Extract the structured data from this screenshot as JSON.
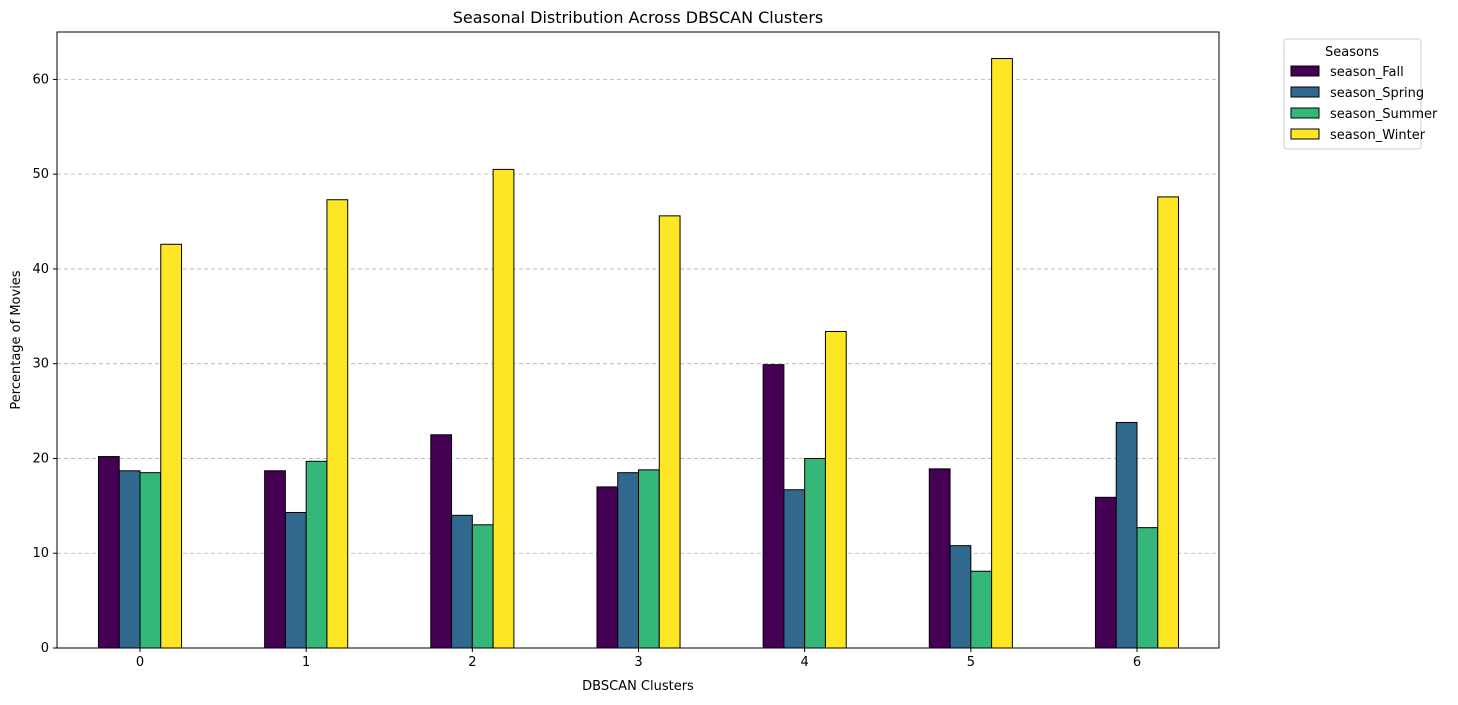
{
  "chart_data": {
    "type": "bar",
    "title": "Seasonal Distribution Across DBSCAN Clusters",
    "xlabel": "DBSCAN Clusters",
    "ylabel": "Percentage of Movies",
    "categories": [
      "0",
      "1",
      "2",
      "3",
      "4",
      "5",
      "6"
    ],
    "ylim": [
      0,
      65
    ],
    "yticks": [
      0,
      10,
      20,
      30,
      40,
      50,
      60
    ],
    "grid": "y-axis, dashed",
    "legend": {
      "title": "Seasons",
      "placement": "outside top-right"
    },
    "series": [
      {
        "name": "season_Fall",
        "color": "#440154",
        "values": [
          20.2,
          18.7,
          22.5,
          17.0,
          29.9,
          18.9,
          15.9
        ]
      },
      {
        "name": "season_Spring",
        "color": "#31688e",
        "values": [
          18.7,
          14.3,
          14.0,
          18.5,
          16.7,
          10.8,
          23.8
        ]
      },
      {
        "name": "season_Summer",
        "color": "#35b779",
        "values": [
          18.5,
          19.7,
          13.0,
          18.8,
          20.0,
          8.1,
          12.7
        ]
      },
      {
        "name": "season_Winter",
        "color": "#fde725",
        "values": [
          42.6,
          47.3,
          50.5,
          45.6,
          33.4,
          62.2,
          47.6
        ]
      }
    ]
  }
}
